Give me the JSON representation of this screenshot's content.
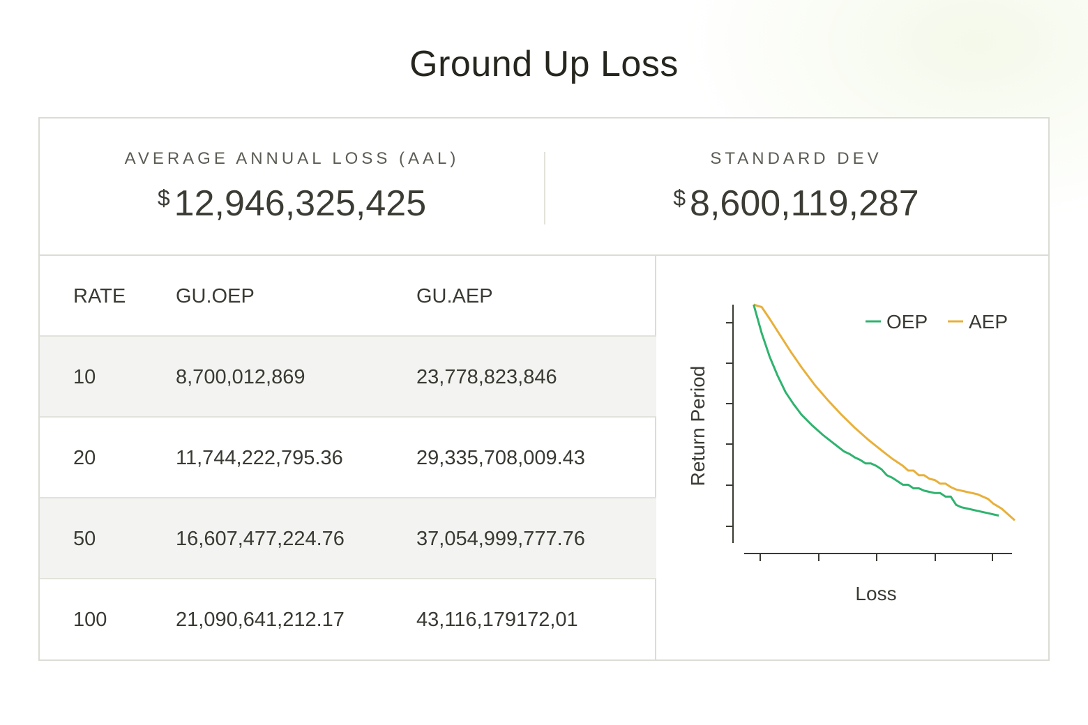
{
  "title": "Ground Up Loss",
  "stats": {
    "aal": {
      "label": "AVERAGE ANNUAL LOSS (AAL)",
      "currency": "$",
      "value": "12,946,325,425"
    },
    "std": {
      "label": "STANDARD DEV",
      "currency": "$",
      "value": "8,600,119,287"
    }
  },
  "table": {
    "headers": [
      "RATE",
      "GU.OEP",
      "GU.AEP"
    ],
    "rows": [
      [
        "10",
        "8,700,012,869",
        "23,778,823,846"
      ],
      [
        "20",
        "11,744,222,795.36",
        "29,335,708,009.43"
      ],
      [
        "50",
        "16,607,477,224.76",
        "37,054,999,777.76"
      ],
      [
        "100",
        "21,090,641,212.17",
        "43,116,179172,01"
      ]
    ]
  },
  "chart_data": {
    "type": "line",
    "xlabel": "Loss",
    "ylabel": "Return Period",
    "legend_position": "top-right",
    "xlim": [
      0,
      1
    ],
    "ylim": [
      0,
      1
    ],
    "series": [
      {
        "name": "OEP",
        "color": "#2fb36f",
        "x": [
          0.02,
          0.05,
          0.08,
          0.11,
          0.14,
          0.17,
          0.2,
          0.24,
          0.28,
          0.32,
          0.36,
          0.38,
          0.4,
          0.42,
          0.44,
          0.46,
          0.48,
          0.5,
          0.52,
          0.54,
          0.56,
          0.58,
          0.6,
          0.62,
          0.64,
          0.66,
          0.68,
          0.7,
          0.72,
          0.74,
          0.76,
          0.78,
          0.8,
          0.82,
          0.86,
          0.9,
          0.94
        ],
        "y": [
          1.0,
          0.88,
          0.78,
          0.7,
          0.63,
          0.58,
          0.535,
          0.49,
          0.45,
          0.415,
          0.38,
          0.37,
          0.355,
          0.345,
          0.33,
          0.33,
          0.32,
          0.305,
          0.28,
          0.27,
          0.255,
          0.24,
          0.24,
          0.225,
          0.225,
          0.215,
          0.21,
          0.205,
          0.205,
          0.19,
          0.19,
          0.155,
          0.145,
          0.14,
          0.13,
          0.12,
          0.11
        ]
      },
      {
        "name": "AEP",
        "color": "#e8b03a",
        "x": [
          0.02,
          0.05,
          0.08,
          0.12,
          0.16,
          0.2,
          0.25,
          0.3,
          0.35,
          0.4,
          0.45,
          0.5,
          0.54,
          0.58,
          0.6,
          0.62,
          0.64,
          0.66,
          0.68,
          0.7,
          0.72,
          0.74,
          0.76,
          0.78,
          0.82,
          0.86,
          0.9,
          0.92,
          0.95,
          1.0
        ],
        "y": [
          1.0,
          0.99,
          0.94,
          0.87,
          0.8,
          0.735,
          0.66,
          0.595,
          0.535,
          0.48,
          0.43,
          0.385,
          0.35,
          0.32,
          0.3,
          0.3,
          0.28,
          0.28,
          0.265,
          0.26,
          0.245,
          0.245,
          0.23,
          0.22,
          0.21,
          0.2,
          0.18,
          0.16,
          0.14,
          0.09
        ]
      }
    ]
  }
}
